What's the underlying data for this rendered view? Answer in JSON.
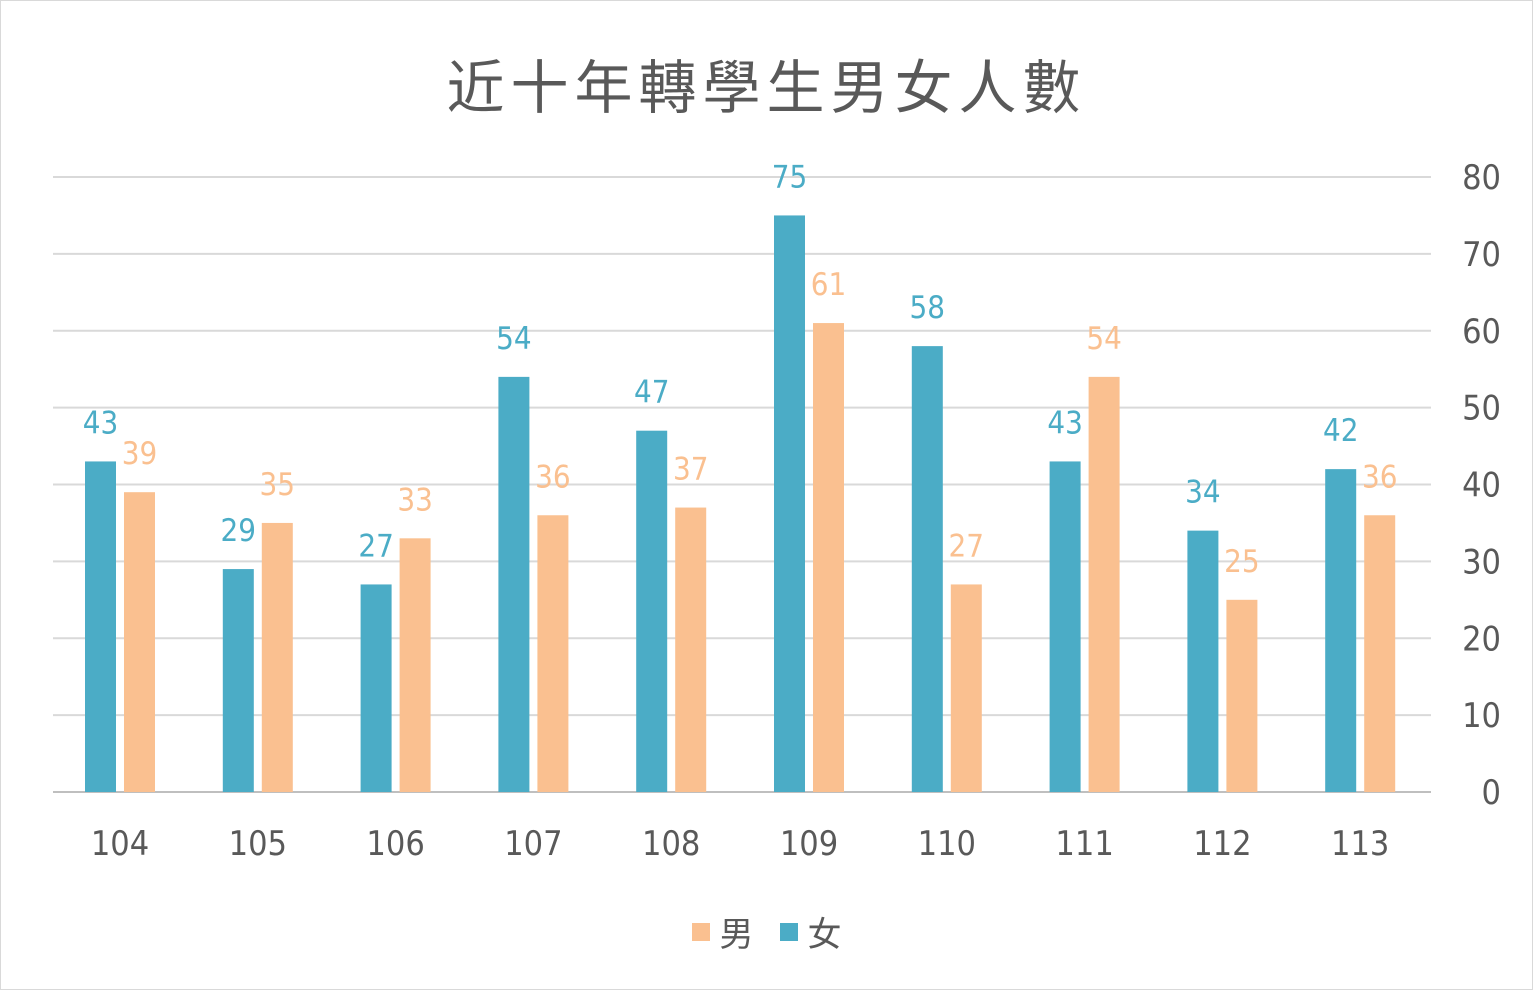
{
  "chart_data": {
    "type": "bar",
    "title": "近十年轉學生男女人數",
    "categories": [
      "104",
      "105",
      "106",
      "107",
      "108",
      "109",
      "110",
      "111",
      "112",
      "113"
    ],
    "series": [
      {
        "name": "女",
        "color": "#4bacc6",
        "values": [
          43,
          29,
          27,
          54,
          47,
          75,
          58,
          43,
          34,
          42
        ]
      },
      {
        "name": "男",
        "color": "#fac090",
        "values": [
          39,
          35,
          33,
          36,
          37,
          61,
          27,
          54,
          25,
          36
        ]
      }
    ],
    "y_axis": {
      "position": "right",
      "min": 0,
      "max": 80,
      "step": 10
    },
    "grid": true,
    "legend": {
      "position": "bottom",
      "entries": [
        {
          "name": "男",
          "color": "#fac090"
        },
        {
          "name": "女",
          "color": "#4bacc6"
        }
      ]
    }
  }
}
